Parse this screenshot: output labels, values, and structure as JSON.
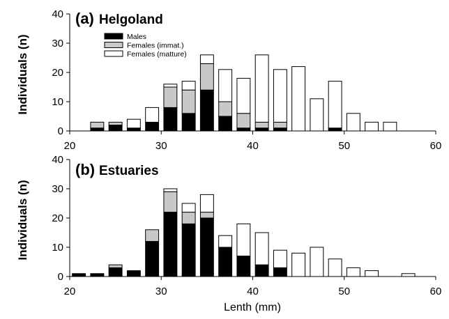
{
  "chart_data": [
    {
      "type": "bar",
      "stacked": true,
      "panel_letter": "(a)",
      "title": "Helgoland",
      "xlabel": "",
      "ylabel": "Individuals (n)",
      "xlim": [
        20,
        60
      ],
      "ylim": [
        0,
        40
      ],
      "xticks": [
        20,
        30,
        40,
        50,
        60
      ],
      "yticks": [
        0,
        10,
        20,
        30,
        40
      ],
      "x": [
        21,
        23,
        25,
        27,
        29,
        31,
        33,
        35,
        37,
        39,
        41,
        43,
        45,
        47,
        49,
        51,
        53,
        55,
        57,
        59
      ],
      "series": [
        {
          "name": "Males",
          "color": "#000000",
          "values": [
            0,
            1,
            2,
            1,
            3,
            8,
            6,
            14,
            5,
            1,
            1,
            1,
            0,
            0,
            1,
            0,
            0,
            0,
            0,
            0
          ]
        },
        {
          "name": "Females (immat.)",
          "color": "#c8c8c8",
          "values": [
            0,
            2,
            1,
            0,
            0,
            7,
            8,
            9,
            5,
            5,
            2,
            2,
            0,
            0,
            0,
            0,
            0,
            0,
            0,
            0
          ]
        },
        {
          "name": "Females (matture)",
          "color": "#ffffff",
          "values": [
            0,
            0,
            0,
            3,
            5,
            1,
            3,
            3,
            11,
            12,
            23,
            18,
            22,
            11,
            16,
            6,
            3,
            3,
            0,
            0
          ]
        }
      ],
      "legend": "top-left"
    },
    {
      "type": "bar",
      "stacked": true,
      "panel_letter": "(b)",
      "title": "Estuaries",
      "xlabel": "Lenth (mm)",
      "ylabel": "Individuals (n)",
      "xlim": [
        20,
        60
      ],
      "ylim": [
        0,
        40
      ],
      "xticks": [
        20,
        30,
        40,
        50,
        60
      ],
      "yticks": [
        0,
        10,
        20,
        30,
        40
      ],
      "x": [
        21,
        23,
        25,
        27,
        29,
        31,
        33,
        35,
        37,
        39,
        41,
        43,
        45,
        47,
        49,
        51,
        53,
        55,
        57,
        59
      ],
      "series": [
        {
          "name": "Males",
          "color": "#000000",
          "values": [
            1,
            1,
            3,
            2,
            12,
            22,
            18,
            20,
            10,
            7,
            4,
            3,
            0,
            0,
            0,
            0,
            0,
            0,
            0,
            0
          ]
        },
        {
          "name": "Females (immat.)",
          "color": "#c8c8c8",
          "values": [
            0,
            0,
            1,
            0,
            4,
            7,
            4,
            2,
            0,
            0,
            0,
            0,
            0,
            0,
            0,
            0,
            0,
            0,
            0,
            0
          ]
        },
        {
          "name": "Females (matture)",
          "color": "#ffffff",
          "values": [
            0,
            0,
            0,
            0,
            0,
            1,
            3,
            6,
            4,
            11,
            11,
            6,
            8,
            10,
            6,
            3,
            2,
            0,
            1,
            0
          ]
        }
      ]
    }
  ]
}
